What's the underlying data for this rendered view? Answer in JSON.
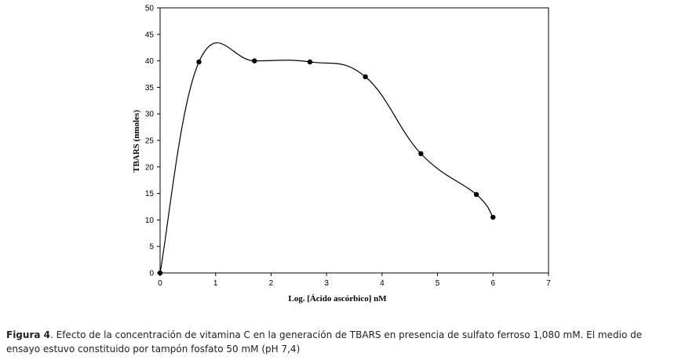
{
  "chart_data": {
    "type": "line",
    "xlabel": "Log. [Ácido ascórbico] nM",
    "ylabel": "TBARS (nmoles)",
    "xlim": [
      0,
      7
    ],
    "ylim": [
      0,
      50
    ],
    "x_ticks": [
      "0",
      "1",
      "2",
      "3",
      "4",
      "5",
      "6",
      "7"
    ],
    "y_ticks": [
      "0",
      "5",
      "10",
      "15",
      "20",
      "25",
      "30",
      "35",
      "40",
      "45",
      "50"
    ],
    "grid": false,
    "smooth": true,
    "series": [
      {
        "color": "#000000",
        "points": [
          {
            "x": 0,
            "y": 0
          },
          {
            "x": 0.7,
            "y": 39.8
          },
          {
            "x": 1.7,
            "y": 40.0
          },
          {
            "x": 2.7,
            "y": 39.8
          },
          {
            "x": 3.7,
            "y": 37.0
          },
          {
            "x": 4.7,
            "y": 22.5
          },
          {
            "x": 5.7,
            "y": 14.8
          },
          {
            "x": 6.0,
            "y": 10.5
          }
        ]
      }
    ]
  },
  "caption": {
    "label": "Figura 4",
    "text": ". Efecto de la concentración de vitamina C en la generación de TBARS en presencia de sulfato ferroso 1,080 mM. El medio de ensayo estuvo constituido por tampón fosfato 50 mM (pH 7,4)"
  }
}
